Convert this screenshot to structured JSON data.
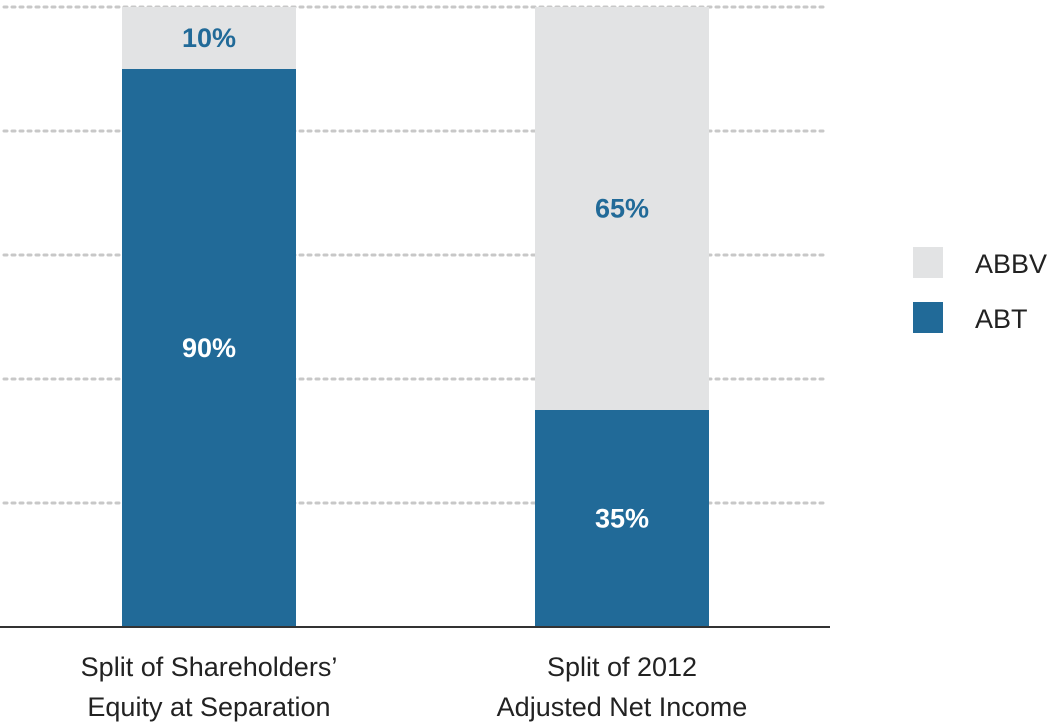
{
  "chart_data": {
    "type": "bar",
    "stacked": true,
    "normalized": true,
    "categories": [
      [
        "Split of Shareholders’",
        "Equity at Separation"
      ],
      [
        "Split of 2012",
        "Adjusted Net Income"
      ]
    ],
    "series": [
      {
        "name": "ABT",
        "values": [
          90,
          35
        ],
        "labels": [
          "90%",
          "35%"
        ],
        "color": "#216a98",
        "label_color": "#ffffff"
      },
      {
        "name": "ABBV",
        "values": [
          10,
          65
        ],
        "labels": [
          "10%",
          "65%"
        ],
        "color": "#e2e3e4",
        "label_color": "#216a98"
      }
    ],
    "legend": {
      "placement": "right",
      "order": [
        "ABBV",
        "ABT"
      ]
    },
    "ylim": [
      0,
      100
    ],
    "grid": true,
    "title": "",
    "xlabel": "",
    "ylabel": ""
  }
}
